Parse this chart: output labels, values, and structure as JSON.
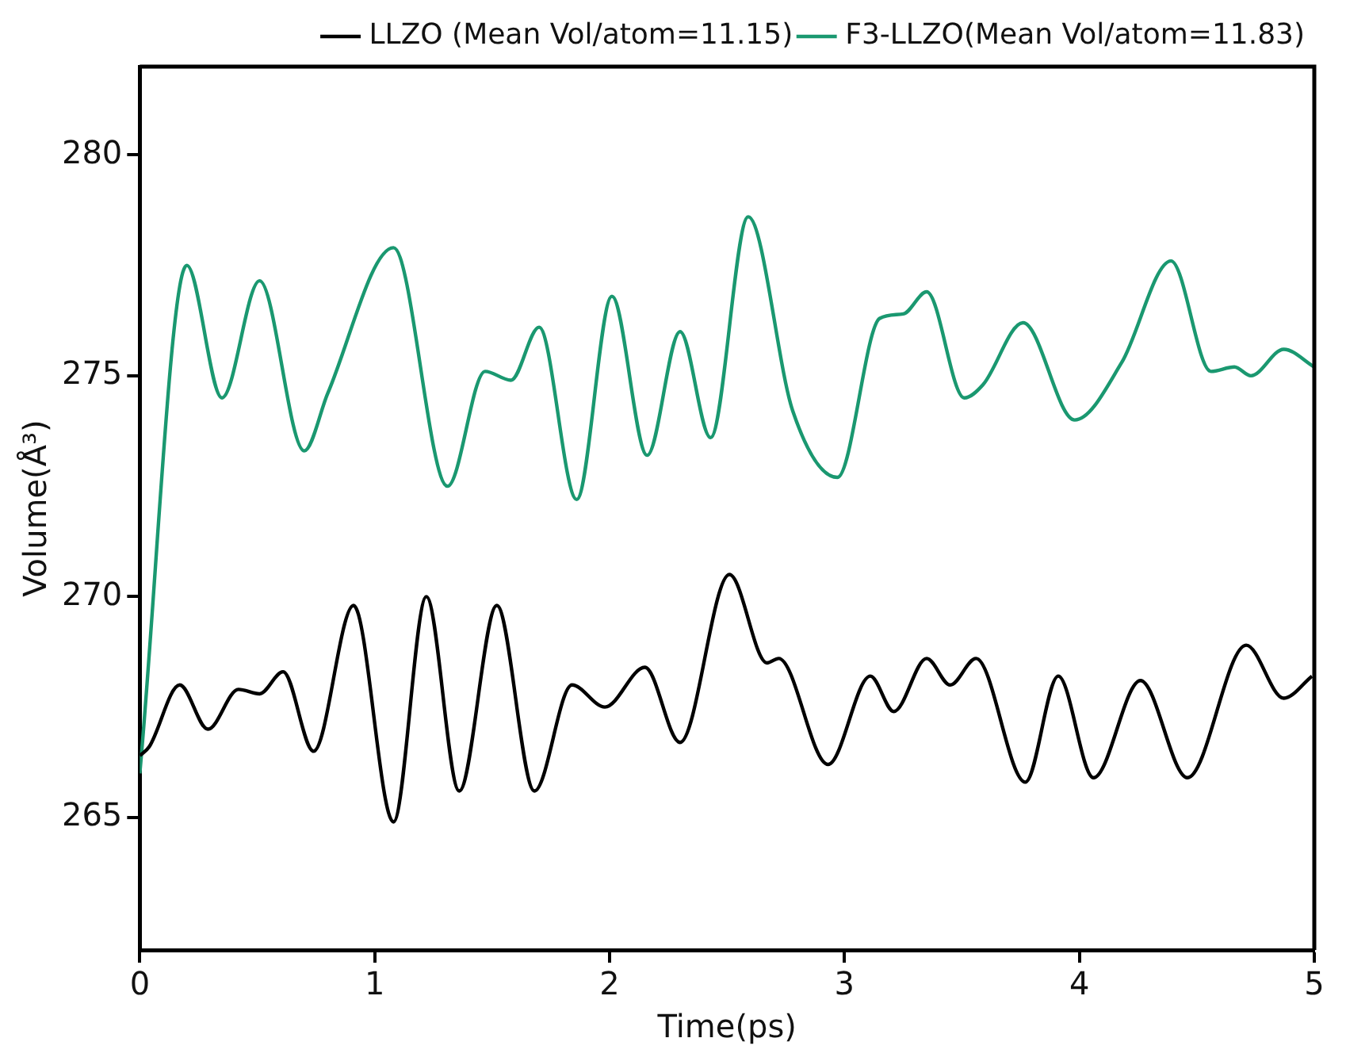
{
  "chart_data": {
    "type": "line",
    "xlabel": "Time(ps)",
    "ylabel": "Volume(Å³)",
    "xlim": [
      0,
      5
    ],
    "xticks": [
      0,
      1,
      2,
      3,
      4,
      5
    ],
    "ylim": [
      262,
      282
    ],
    "yticks": [
      265,
      270,
      275,
      280
    ],
    "grid": false,
    "legend": "top right",
    "series": [
      {
        "name": "LLZO (Mean Vol/atom=11.15)",
        "color": "#000000",
        "x": [
          0,
          0.04,
          0.17,
          0.29,
          0.42,
          0.51,
          0.61,
          0.74,
          0.91,
          1.08,
          1.22,
          1.36,
          1.52,
          1.68,
          1.84,
          1.98,
          2.15,
          2.3,
          2.51,
          2.67,
          2.72,
          2.93,
          3.11,
          3.21,
          3.35,
          3.45,
          3.56,
          3.77,
          3.91,
          4.06,
          4.26,
          4.46,
          4.71,
          4.87,
          4.99
        ],
        "values": [
          266.4,
          266.6,
          268.0,
          267.0,
          267.9,
          267.8,
          268.3,
          266.5,
          269.8,
          264.9,
          270.0,
          265.6,
          269.8,
          265.6,
          268.0,
          267.5,
          268.4,
          266.7,
          270.5,
          268.5,
          268.6,
          266.2,
          268.2,
          267.4,
          268.6,
          268.0,
          268.6,
          265.8,
          268.2,
          265.9,
          268.1,
          265.9,
          268.9,
          267.7,
          268.2
        ]
      },
      {
        "name": "F3-LLZO(Mean Vol/atom=11.83)",
        "color": "#1a9870",
        "x": [
          0,
          0.2,
          0.35,
          0.51,
          0.7,
          0.8,
          1.08,
          1.31,
          1.47,
          1.58,
          1.7,
          1.86,
          2.01,
          2.16,
          2.3,
          2.43,
          2.59,
          2.78,
          2.97,
          3.15,
          3.25,
          3.35,
          3.51,
          3.59,
          3.76,
          3.98,
          4.18,
          4.39,
          4.56,
          4.66,
          4.73,
          4.87,
          5.0
        ],
        "values": [
          266.0,
          277.5,
          274.5,
          277.15,
          273.3,
          274.6,
          277.9,
          272.5,
          275.1,
          274.9,
          276.1,
          272.2,
          276.8,
          273.2,
          276.0,
          273.6,
          278.6,
          274.2,
          272.7,
          276.3,
          276.4,
          276.9,
          274.5,
          274.8,
          276.2,
          274.0,
          275.3,
          277.6,
          275.1,
          275.2,
          275.0,
          275.6,
          275.2
        ]
      }
    ]
  }
}
